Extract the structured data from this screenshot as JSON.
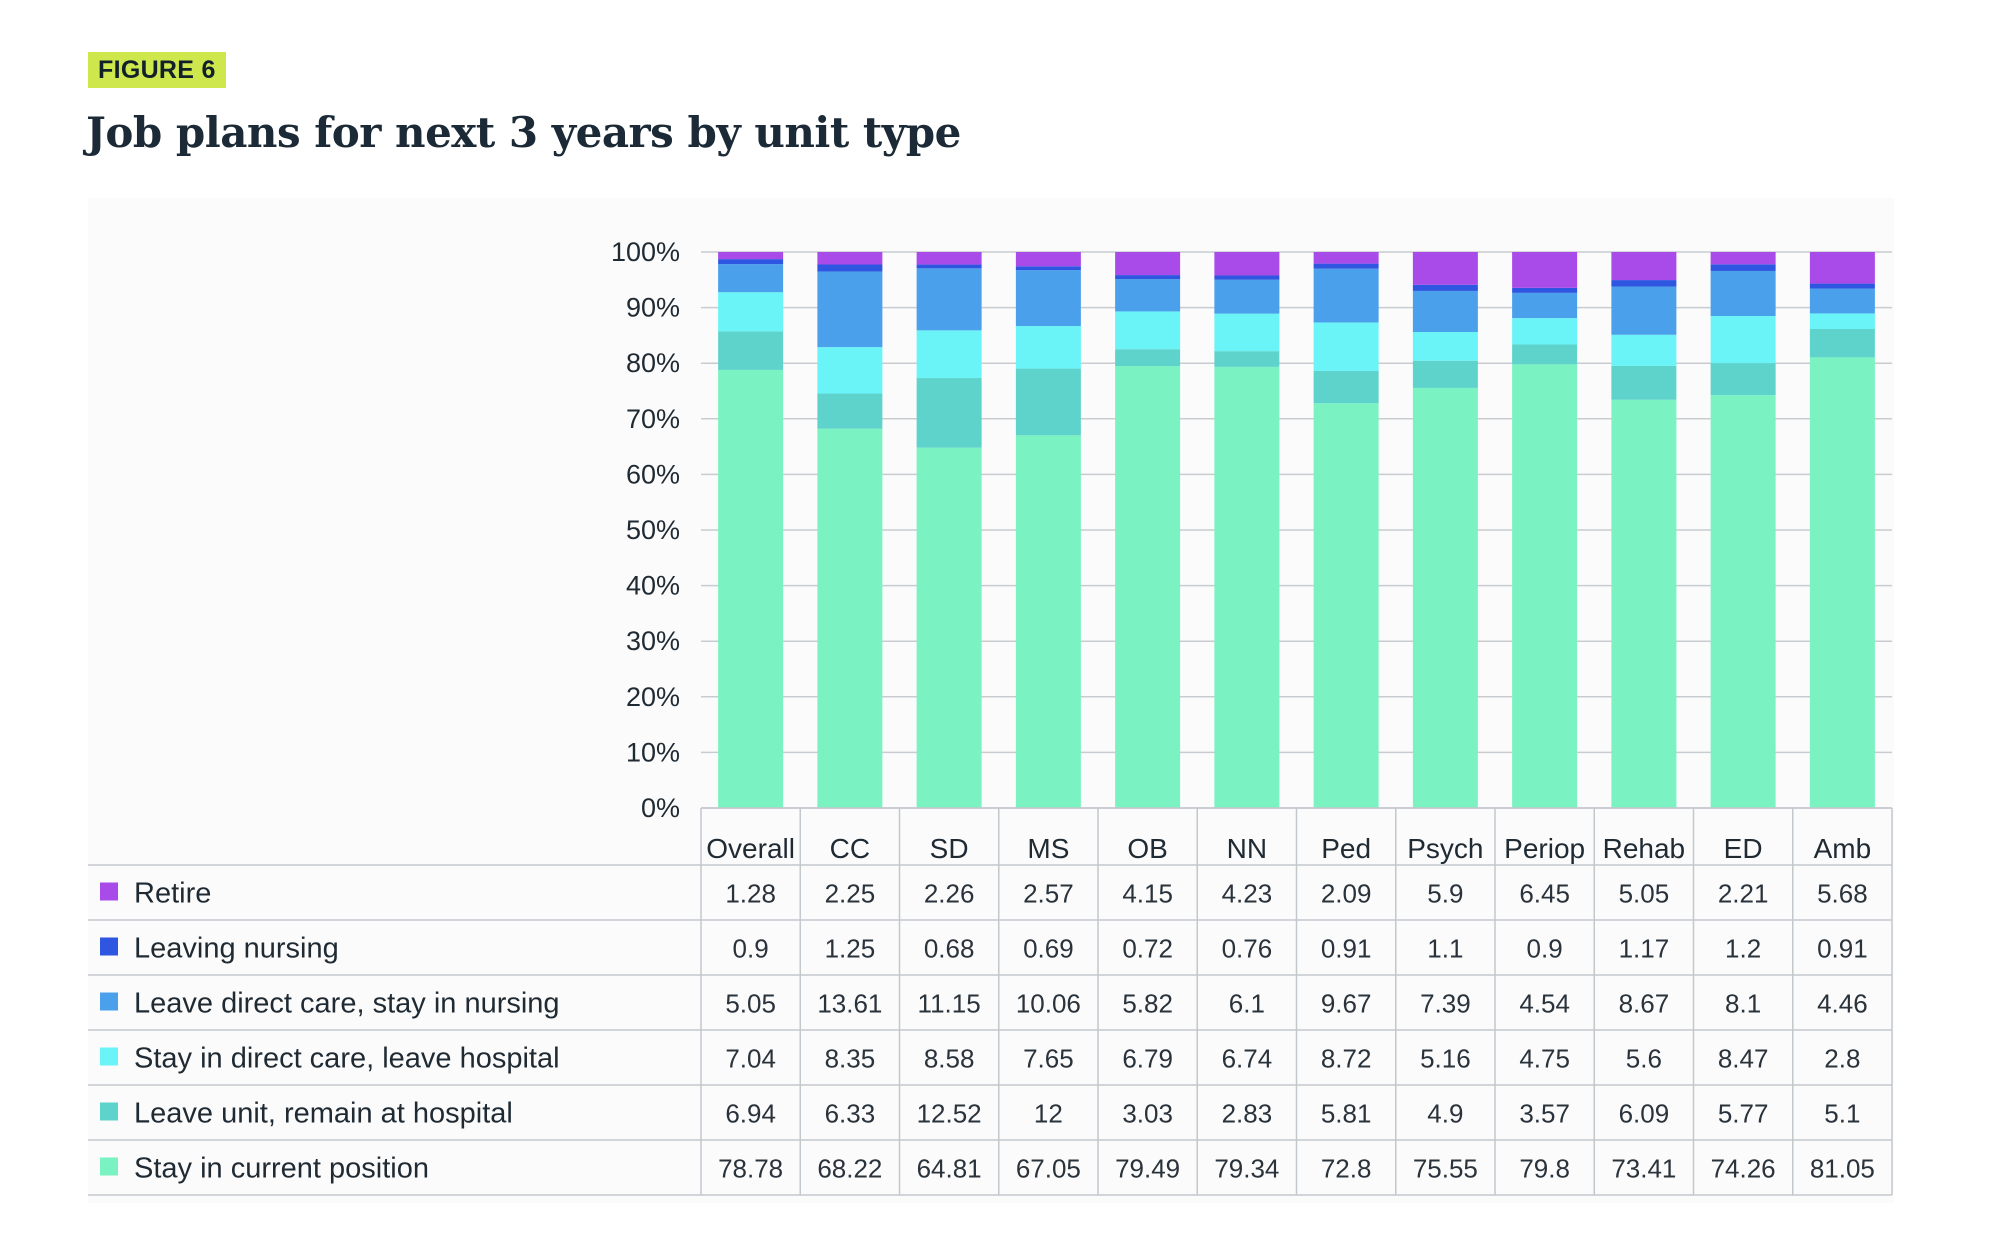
{
  "figure": {
    "tag": "FIGURE 6",
    "title": "Job plans for next 3 years by unit type"
  },
  "colors": {
    "tag_bg": "#cde74c",
    "grid": "#c8ccd0",
    "table_line": "#c3c8cc"
  },
  "chart_data": {
    "type": "bar",
    "stacked": true,
    "normalized": true,
    "title": "Job plans for next 3 years by unit type",
    "categories": [
      "Overall",
      "CC",
      "SD",
      "MS",
      "OB",
      "NN",
      "Ped",
      "Psych",
      "Periop",
      "Rehab",
      "ED",
      "Amb"
    ],
    "ylim": [
      0,
      100
    ],
    "yticks": [
      "0%",
      "10%",
      "20%",
      "30%",
      "40%",
      "50%",
      "60%",
      "70%",
      "80%",
      "90%",
      "100%"
    ],
    "grid": true,
    "legend": "table below chart",
    "series": [
      {
        "name": "Stay in current position",
        "color": "#7af2c1",
        "values": [
          78.78,
          68.22,
          64.81,
          67.05,
          79.49,
          79.34,
          72.8,
          75.55,
          79.8,
          73.41,
          74.26,
          81.05
        ]
      },
      {
        "name": "Leave unit, remain at hospital",
        "color": "#5ed3cc",
        "values": [
          6.94,
          6.33,
          12.52,
          12,
          3.03,
          2.83,
          5.81,
          4.9,
          3.57,
          6.09,
          5.77,
          5.1
        ]
      },
      {
        "name": "Stay in direct care, leave hospital",
        "color": "#6af4f7",
        "values": [
          7.04,
          8.35,
          8.58,
          7.65,
          6.79,
          6.74,
          8.72,
          5.16,
          4.75,
          5.6,
          8.47,
          2.8
        ]
      },
      {
        "name": "Leave direct care, stay in nursing",
        "color": "#4aa0ea",
        "values": [
          5.05,
          13.61,
          11.15,
          10.06,
          5.82,
          6.1,
          9.67,
          7.39,
          4.54,
          8.67,
          8.1,
          4.46
        ]
      },
      {
        "name": "Leaving nursing",
        "color": "#2f56e0",
        "values": [
          0.9,
          1.25,
          0.68,
          0.69,
          0.72,
          0.76,
          0.91,
          1.1,
          0.9,
          1.17,
          1.2,
          0.91
        ]
      },
      {
        "name": "Retire",
        "color": "#a84be8",
        "values": [
          1.28,
          2.25,
          2.26,
          2.57,
          4.15,
          4.23,
          2.09,
          5.9,
          6.45,
          5.05,
          2.21,
          5.68
        ]
      }
    ],
    "table_rows": [
      {
        "label": "Retire",
        "values": [
          "1.28",
          "2.25",
          "2.26",
          "2.57",
          "4.15",
          "4.23",
          "2.09",
          "5.9",
          "6.45",
          "5.05",
          "2.21",
          "5.68"
        ]
      },
      {
        "label": "Leaving nursing",
        "values": [
          "0.9",
          "1.25",
          "0.68",
          "0.69",
          "0.72",
          "0.76",
          "0.91",
          "1.1",
          "0.9",
          "1.17",
          "1.2",
          "0.91"
        ]
      },
      {
        "label": "Leave direct care, stay in nursing",
        "values": [
          "5.05",
          "13.61",
          "11.15",
          "10.06",
          "5.82",
          "6.1",
          "9.67",
          "7.39",
          "4.54",
          "8.67",
          "8.1",
          "4.46"
        ]
      },
      {
        "label": "Stay in direct care, leave hospital",
        "values": [
          "7.04",
          "8.35",
          "8.58",
          "7.65",
          "6.79",
          "6.74",
          "8.72",
          "5.16",
          "4.75",
          "5.6",
          "8.47",
          "2.8"
        ]
      },
      {
        "label": "Leave unit, remain at hospital",
        "values": [
          "6.94",
          "6.33",
          "12.52",
          "12",
          "3.03",
          "2.83",
          "5.81",
          "4.9",
          "3.57",
          "6.09",
          "5.77",
          "5.1"
        ]
      },
      {
        "label": "Stay in current position",
        "values": [
          "78.78",
          "68.22",
          "64.81",
          "67.05",
          "79.49",
          "79.34",
          "72.8",
          "75.55",
          "79.8",
          "73.41",
          "74.26",
          "81.05"
        ]
      }
    ]
  }
}
